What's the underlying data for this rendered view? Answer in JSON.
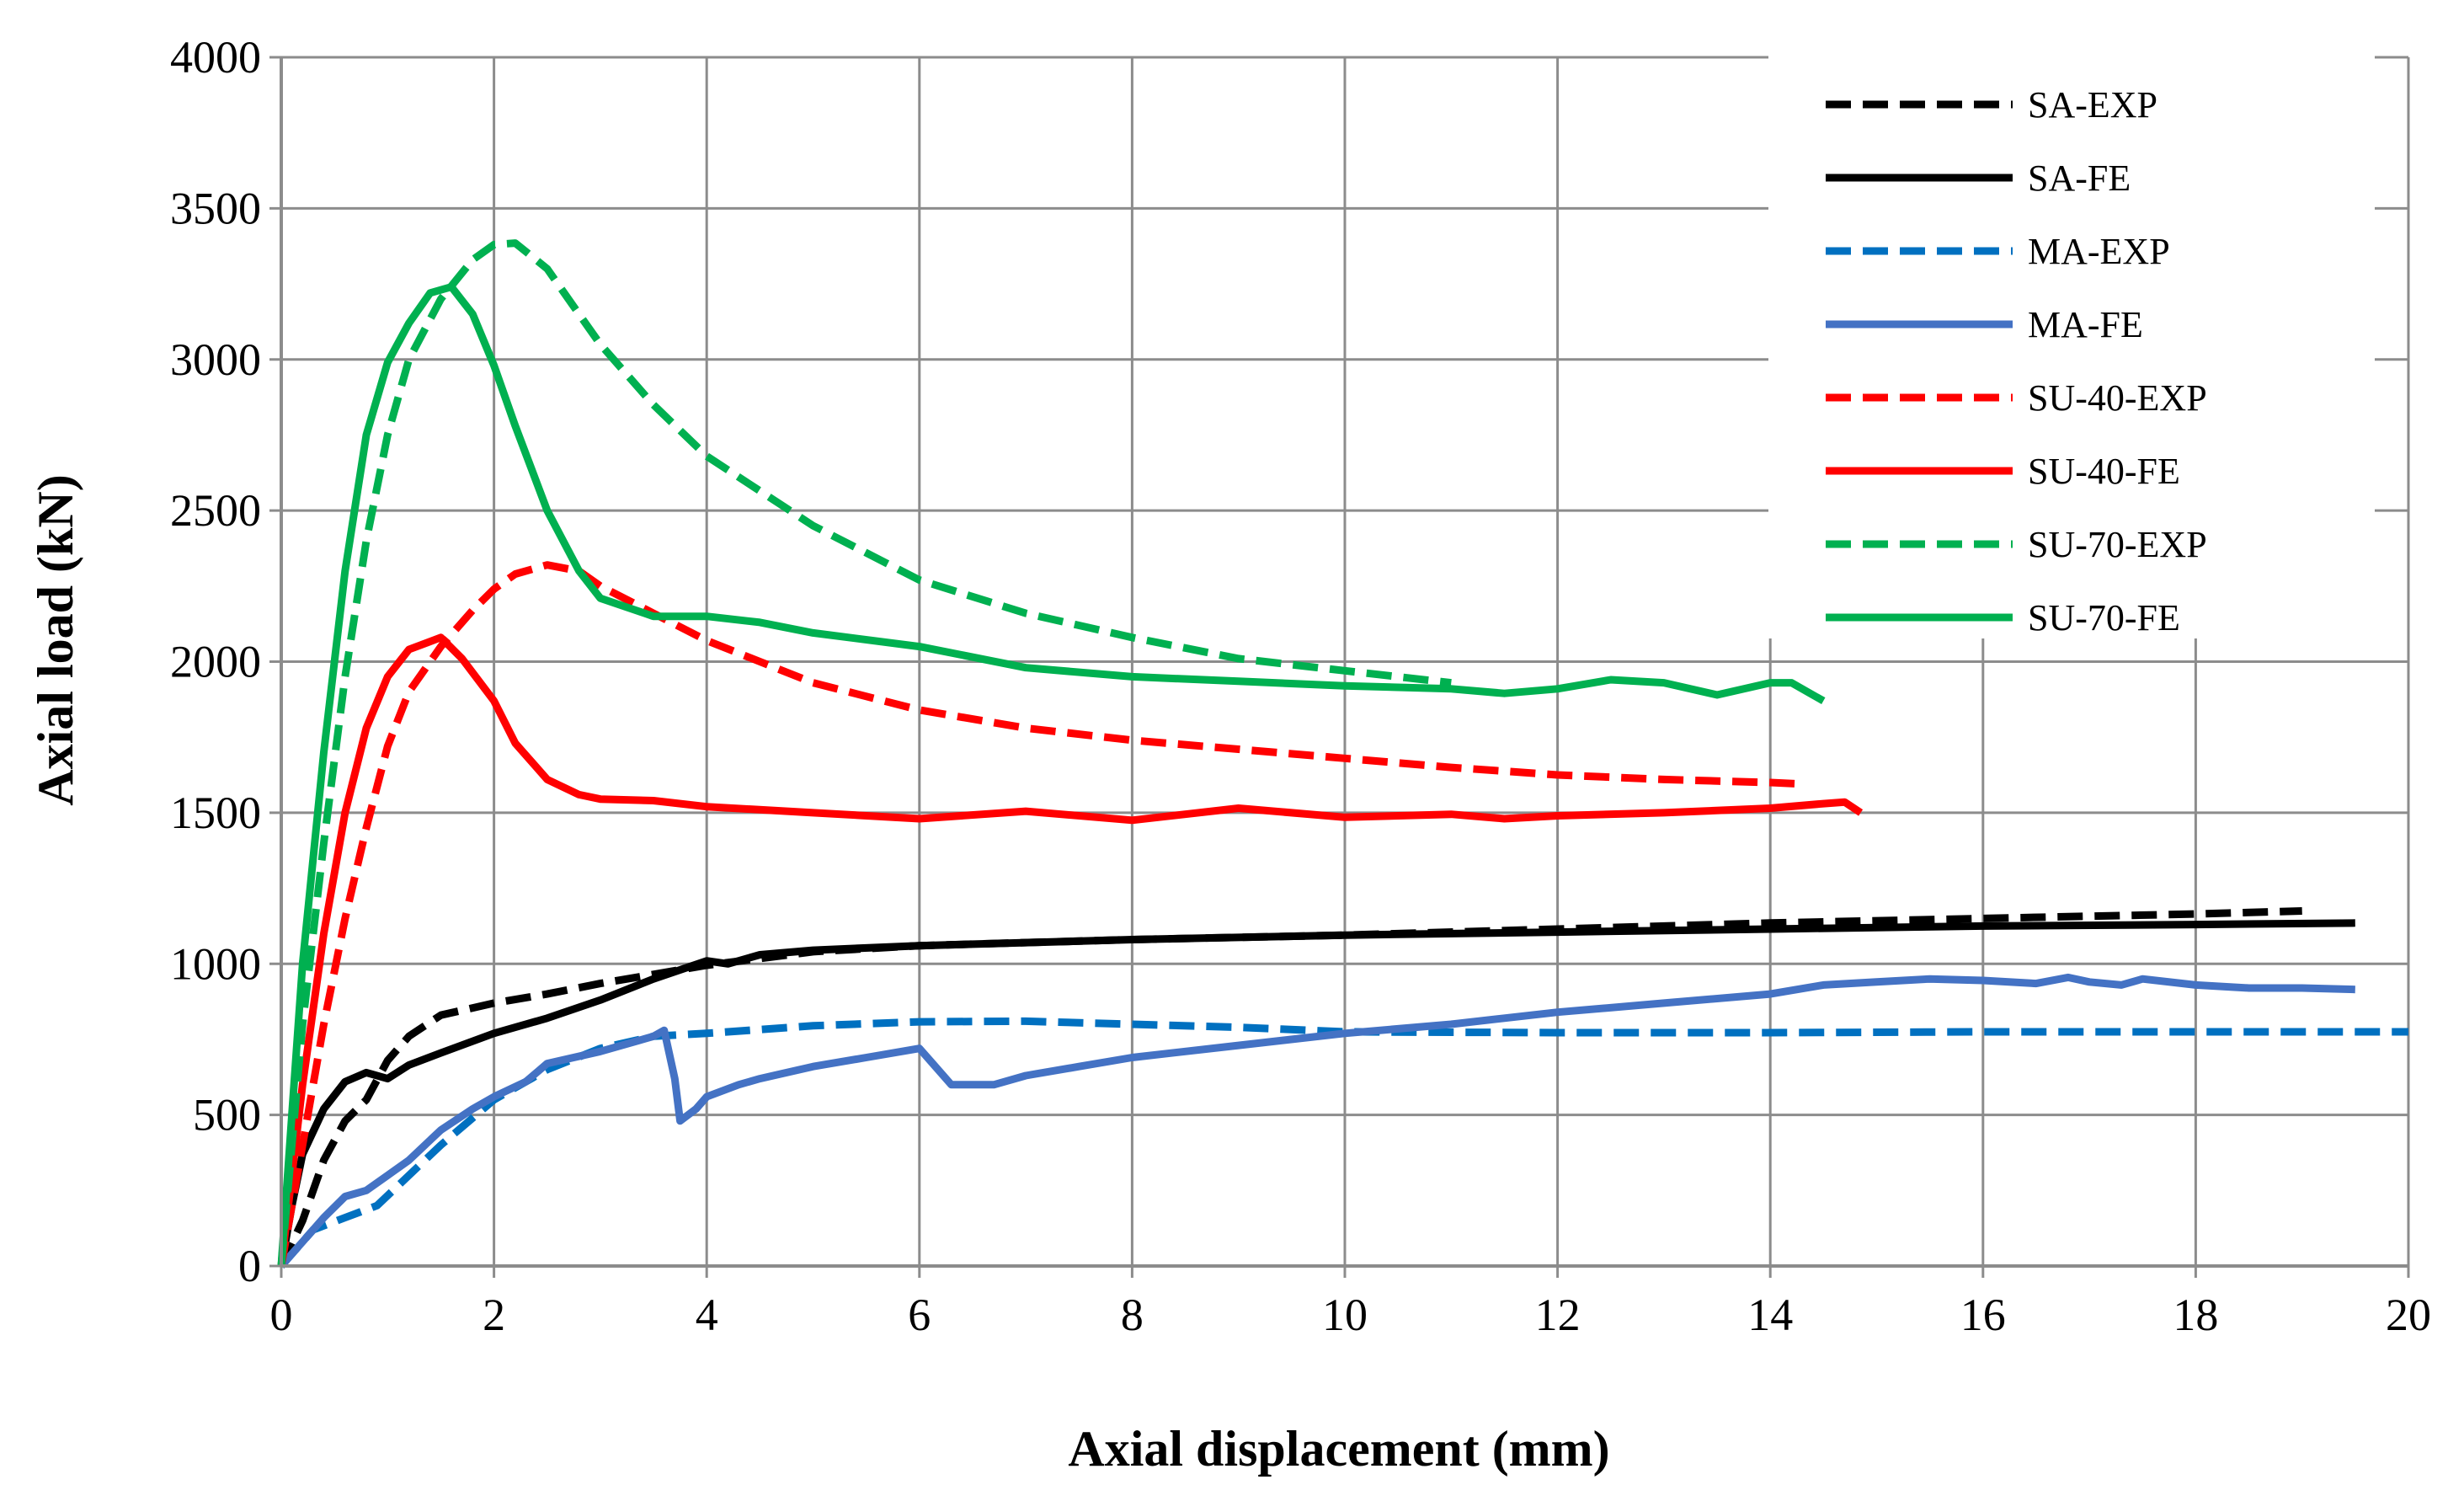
{
  "chart_data": {
    "type": "line",
    "title": "",
    "xlabel": "Axial displacement (mm)",
    "ylabel": "Axial load (kN)",
    "xlim": [
      0,
      20
    ],
    "ylim": [
      0,
      4000
    ],
    "grid": true,
    "legend_position": "top-right",
    "x_ticks": [
      "0",
      "2",
      "4",
      "6",
      "8",
      "10",
      "12",
      "14",
      "16",
      "18",
      "20"
    ],
    "y_ticks": [
      "0",
      "500",
      "1000",
      "1500",
      "2000",
      "2500",
      "3000",
      "3500",
      "4000"
    ],
    "x_tick_values": [
      0,
      2,
      4,
      6,
      8,
      10,
      12,
      14,
      16,
      18,
      20
    ],
    "y_tick_values": [
      0,
      500,
      1000,
      1500,
      2000,
      2500,
      3000,
      3500,
      4000
    ],
    "series": [
      {
        "name": "SA-EXP",
        "color": "#000000",
        "dash": "dashed",
        "points": [
          [
            0,
            0
          ],
          [
            0.2,
            150
          ],
          [
            0.4,
            350
          ],
          [
            0.6,
            480
          ],
          [
            0.8,
            550
          ],
          [
            1.0,
            680
          ],
          [
            1.2,
            760
          ],
          [
            1.5,
            830
          ],
          [
            2.0,
            870
          ],
          [
            2.5,
            900
          ],
          [
            3.0,
            935
          ],
          [
            3.5,
            965
          ],
          [
            4.0,
            995
          ],
          [
            5.0,
            1040
          ],
          [
            6.0,
            1060
          ],
          [
            8.0,
            1080
          ],
          [
            10.0,
            1095
          ],
          [
            12.0,
            1115
          ],
          [
            14.0,
            1135
          ],
          [
            16.0,
            1150
          ],
          [
            18.0,
            1165
          ],
          [
            19.0,
            1175
          ]
        ]
      },
      {
        "name": "SA-FE",
        "color": "#000000",
        "dash": "solid",
        "points": [
          [
            0,
            0
          ],
          [
            0.1,
            200
          ],
          [
            0.2,
            370
          ],
          [
            0.4,
            520
          ],
          [
            0.6,
            610
          ],
          [
            0.8,
            640
          ],
          [
            1.0,
            620
          ],
          [
            1.2,
            665
          ],
          [
            1.5,
            705
          ],
          [
            2.0,
            770
          ],
          [
            2.5,
            820
          ],
          [
            3.0,
            880
          ],
          [
            3.5,
            950
          ],
          [
            4.0,
            1010
          ],
          [
            4.2,
            1000
          ],
          [
            4.5,
            1030
          ],
          [
            5.0,
            1045
          ],
          [
            6.0,
            1060
          ],
          [
            8.0,
            1080
          ],
          [
            10.0,
            1095
          ],
          [
            12.0,
            1105
          ],
          [
            14.0,
            1115
          ],
          [
            16.0,
            1125
          ],
          [
            18.0,
            1130
          ],
          [
            19.5,
            1135
          ]
        ]
      },
      {
        "name": "MA-EXP",
        "color": "#0070C0",
        "dash": "dashed",
        "points": [
          [
            0,
            0
          ],
          [
            0.3,
            120
          ],
          [
            0.6,
            160
          ],
          [
            0.9,
            200
          ],
          [
            1.2,
            300
          ],
          [
            1.5,
            400
          ],
          [
            2.0,
            550
          ],
          [
            2.5,
            650
          ],
          [
            3.0,
            720
          ],
          [
            3.5,
            760
          ],
          [
            4.0,
            770
          ],
          [
            5.0,
            795
          ],
          [
            6.0,
            808
          ],
          [
            7.0,
            810
          ],
          [
            8.0,
            800
          ],
          [
            9.0,
            790
          ],
          [
            10.0,
            775
          ],
          [
            12.0,
            772
          ],
          [
            14.0,
            772
          ],
          [
            16.0,
            775
          ],
          [
            18.0,
            775
          ],
          [
            20.0,
            775
          ]
        ]
      },
      {
        "name": "MA-FE",
        "color": "#4472C4",
        "dash": "solid",
        "points": [
          [
            0,
            0
          ],
          [
            0.2,
            80
          ],
          [
            0.4,
            160
          ],
          [
            0.6,
            230
          ],
          [
            0.8,
            250
          ],
          [
            1.0,
            300
          ],
          [
            1.2,
            350
          ],
          [
            1.5,
            450
          ],
          [
            1.8,
            520
          ],
          [
            2.0,
            560
          ],
          [
            2.3,
            610
          ],
          [
            2.5,
            670
          ],
          [
            3.0,
            710
          ],
          [
            3.5,
            760
          ],
          [
            3.6,
            780
          ],
          [
            3.7,
            620
          ],
          [
            3.75,
            480
          ],
          [
            3.9,
            520
          ],
          [
            4.0,
            560
          ],
          [
            4.3,
            600
          ],
          [
            4.5,
            620
          ],
          [
            5.0,
            660
          ],
          [
            5.5,
            690
          ],
          [
            6.0,
            720
          ],
          [
            6.1,
            680
          ],
          [
            6.3,
            600
          ],
          [
            6.7,
            600
          ],
          [
            7.0,
            630
          ],
          [
            7.5,
            660
          ],
          [
            8.0,
            690
          ],
          [
            9.0,
            730
          ],
          [
            10.0,
            770
          ],
          [
            11.0,
            800
          ],
          [
            11.5,
            820
          ],
          [
            12.0,
            840
          ],
          [
            13.0,
            870
          ],
          [
            14.0,
            900
          ],
          [
            14.5,
            930
          ],
          [
            15.0,
            940
          ],
          [
            15.5,
            950
          ],
          [
            16.0,
            945
          ],
          [
            16.5,
            935
          ],
          [
            16.8,
            955
          ],
          [
            17.0,
            940
          ],
          [
            17.3,
            930
          ],
          [
            17.5,
            950
          ],
          [
            18.0,
            930
          ],
          [
            18.5,
            920
          ],
          [
            19.0,
            920
          ],
          [
            19.5,
            915
          ]
        ]
      },
      {
        "name": "SU-40-EXP",
        "color": "#FF0000",
        "dash": "dashed",
        "points": [
          [
            0,
            0
          ],
          [
            0.1,
            200
          ],
          [
            0.2,
            400
          ],
          [
            0.4,
            800
          ],
          [
            0.6,
            1150
          ],
          [
            0.8,
            1450
          ],
          [
            1.0,
            1720
          ],
          [
            1.2,
            1900
          ],
          [
            1.5,
            2050
          ],
          [
            1.8,
            2170
          ],
          [
            2.0,
            2240
          ],
          [
            2.2,
            2290
          ],
          [
            2.5,
            2320
          ],
          [
            2.8,
            2300
          ],
          [
            3.0,
            2250
          ],
          [
            3.5,
            2160
          ],
          [
            4.0,
            2070
          ],
          [
            5.0,
            1930
          ],
          [
            6.0,
            1840
          ],
          [
            7.0,
            1780
          ],
          [
            8.0,
            1740
          ],
          [
            9.0,
            1710
          ],
          [
            10.0,
            1680
          ],
          [
            11.0,
            1650
          ],
          [
            12.0,
            1625
          ],
          [
            13.0,
            1610
          ],
          [
            14.0,
            1600
          ],
          [
            14.3,
            1595
          ]
        ]
      },
      {
        "name": "SU-40-FE",
        "color": "#FF0000",
        "dash": "solid",
        "points": [
          [
            0,
            0
          ],
          [
            0.1,
            300
          ],
          [
            0.2,
            600
          ],
          [
            0.4,
            1100
          ],
          [
            0.6,
            1500
          ],
          [
            0.8,
            1780
          ],
          [
            1.0,
            1950
          ],
          [
            1.2,
            2040
          ],
          [
            1.5,
            2080
          ],
          [
            1.7,
            2010
          ],
          [
            2.0,
            1870
          ],
          [
            2.2,
            1730
          ],
          [
            2.5,
            1610
          ],
          [
            2.8,
            1560
          ],
          [
            3.0,
            1545
          ],
          [
            3.5,
            1540
          ],
          [
            4.0,
            1520
          ],
          [
            5.0,
            1500
          ],
          [
            6.0,
            1480
          ],
          [
            7.0,
            1505
          ],
          [
            8.0,
            1475
          ],
          [
            9.0,
            1515
          ],
          [
            10.0,
            1485
          ],
          [
            11.0,
            1495
          ],
          [
            11.5,
            1480
          ],
          [
            12.0,
            1490
          ],
          [
            13.0,
            1500
          ],
          [
            14.0,
            1515
          ],
          [
            14.5,
            1530
          ],
          [
            14.7,
            1535
          ],
          [
            14.85,
            1500
          ]
        ]
      },
      {
        "name": "SU-70-EXP",
        "color": "#00B050",
        "dash": "dashed",
        "points": [
          [
            0,
            0
          ],
          [
            0.1,
            400
          ],
          [
            0.2,
            800
          ],
          [
            0.4,
            1400
          ],
          [
            0.6,
            1950
          ],
          [
            0.8,
            2400
          ],
          [
            1.0,
            2750
          ],
          [
            1.2,
            3000
          ],
          [
            1.5,
            3200
          ],
          [
            1.8,
            3330
          ],
          [
            2.0,
            3380
          ],
          [
            2.2,
            3385
          ],
          [
            2.5,
            3300
          ],
          [
            2.8,
            3150
          ],
          [
            3.0,
            3050
          ],
          [
            3.5,
            2850
          ],
          [
            4.0,
            2680
          ],
          [
            5.0,
            2450
          ],
          [
            6.0,
            2270
          ],
          [
            7.0,
            2160
          ],
          [
            8.0,
            2080
          ],
          [
            9.0,
            2010
          ],
          [
            10.0,
            1970
          ],
          [
            11.0,
            1930
          ]
        ]
      },
      {
        "name": "SU-70-FE",
        "color": "#00B050",
        "dash": "solid",
        "points": [
          [
            0,
            0
          ],
          [
            0.1,
            500
          ],
          [
            0.2,
            1000
          ],
          [
            0.4,
            1700
          ],
          [
            0.6,
            2300
          ],
          [
            0.8,
            2750
          ],
          [
            1.0,
            2990
          ],
          [
            1.2,
            3120
          ],
          [
            1.4,
            3220
          ],
          [
            1.6,
            3240
          ],
          [
            1.8,
            3150
          ],
          [
            2.0,
            2980
          ],
          [
            2.2,
            2780
          ],
          [
            2.5,
            2500
          ],
          [
            2.8,
            2300
          ],
          [
            3.0,
            2210
          ],
          [
            3.5,
            2150
          ],
          [
            4.0,
            2150
          ],
          [
            4.5,
            2130
          ],
          [
            5.0,
            2095
          ],
          [
            6.0,
            2050
          ],
          [
            7.0,
            1980
          ],
          [
            8.0,
            1950
          ],
          [
            9.0,
            1935
          ],
          [
            10.0,
            1920
          ],
          [
            11.0,
            1910
          ],
          [
            11.5,
            1895
          ],
          [
            12.0,
            1910
          ],
          [
            12.5,
            1940
          ],
          [
            13.0,
            1930
          ],
          [
            13.5,
            1890
          ],
          [
            14.0,
            1930
          ],
          [
            14.2,
            1930
          ],
          [
            14.4,
            1890
          ],
          [
            14.5,
            1870
          ]
        ]
      }
    ]
  }
}
